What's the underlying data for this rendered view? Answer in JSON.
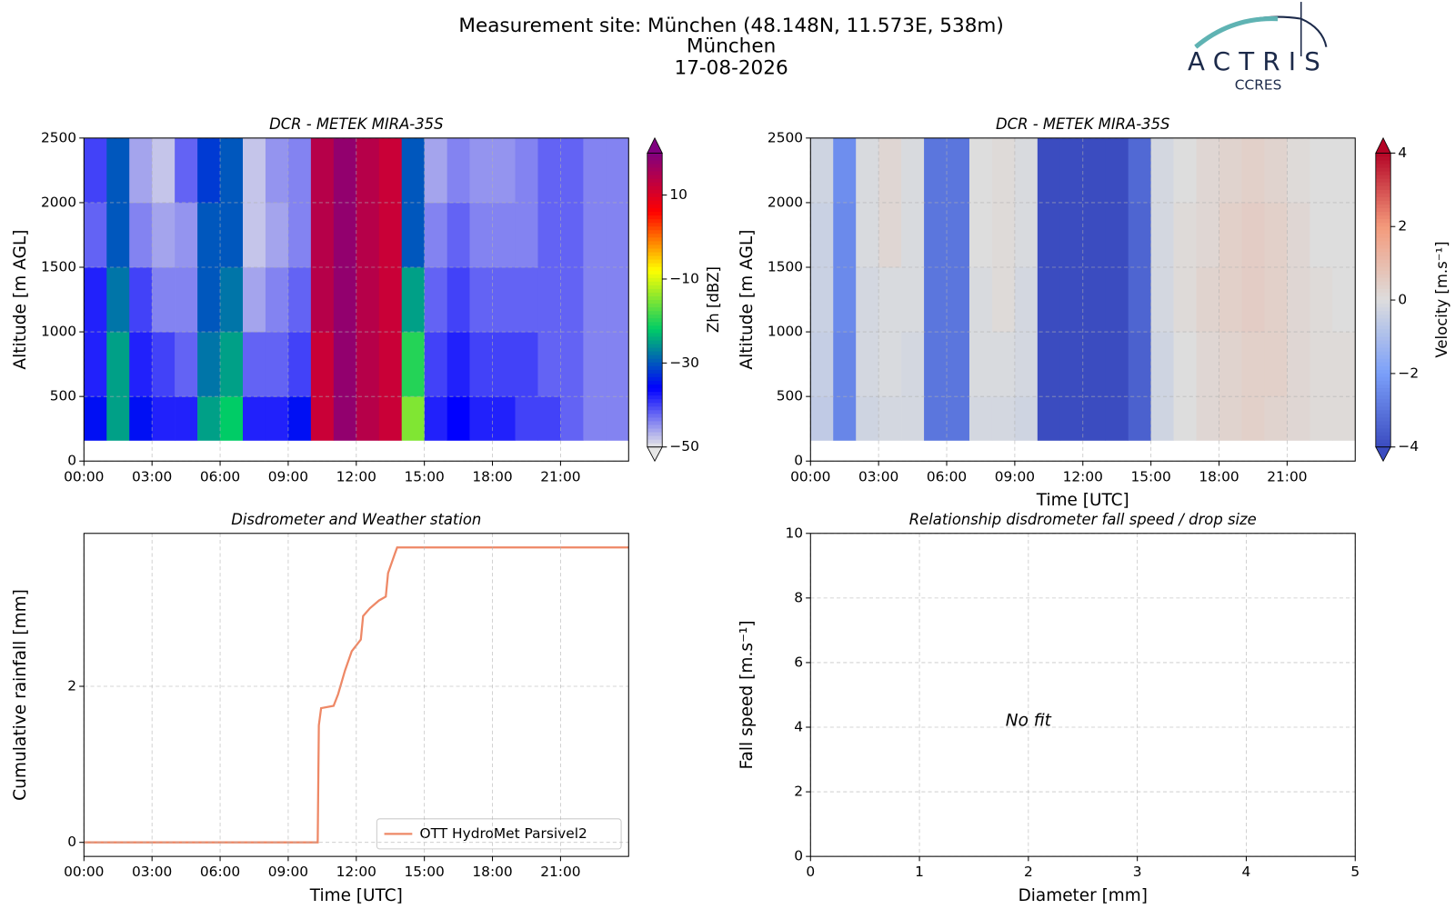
{
  "header": {
    "title": [
      "Measurement site: München (48.148N, 11.573E, 538m)",
      "München",
      "17-08-2026"
    ],
    "logo": "ACTRIS",
    "logo_subtitle": "CCRES"
  },
  "chart_data": [
    {
      "type": "heatmap",
      "title": "DCR - METEK MIRA-35S",
      "ylabel": "Altitude [m AGL]",
      "xlim": [
        0,
        24
      ],
      "xticks": [
        {
          "value": 0,
          "label": "00:00"
        },
        {
          "value": 3,
          "label": "03:00"
        },
        {
          "value": 6,
          "label": "06:00"
        },
        {
          "value": 9,
          "label": "09:00"
        },
        {
          "value": 12,
          "label": "12:00"
        },
        {
          "value": 15,
          "label": "15:00"
        },
        {
          "value": 18,
          "label": "18:00"
        },
        {
          "value": 21,
          "label": "21:00"
        }
      ],
      "ylim": [
        0,
        2500
      ],
      "yticks": [
        0,
        500,
        1000,
        1500,
        2000,
        2500
      ],
      "grid": true,
      "x_bins": [
        0,
        1,
        2,
        3,
        4,
        5,
        6,
        7,
        8,
        9,
        10,
        11,
        12,
        13,
        14,
        15,
        16,
        17,
        18,
        19,
        20,
        21,
        22,
        23,
        24
      ],
      "y_bins": [
        160,
        500,
        1000,
        1500,
        2000,
        2500
      ],
      "z": [
        [
          -35,
          -25,
          -35,
          -38,
          -38,
          -25,
          -22,
          -38,
          -38,
          -35,
          12,
          18,
          14,
          12,
          -15,
          -38,
          -36,
          -38,
          -38,
          -40,
          -40,
          -42,
          -44,
          -44
        ],
        [
          -38,
          -25,
          -38,
          -40,
          -42,
          -28,
          -25,
          -42,
          -42,
          -40,
          12,
          18,
          14,
          12,
          -20,
          -40,
          -38,
          -40,
          -40,
          -40,
          -42,
          -42,
          -44,
          -44
        ],
        [
          -38,
          -28,
          -40,
          -44,
          -44,
          -30,
          -28,
          -46,
          -44,
          -42,
          14,
          18,
          14,
          12,
          -25,
          -42,
          -40,
          -42,
          -42,
          -42,
          -42,
          -42,
          -44,
          -44
        ],
        [
          -42,
          -30,
          -44,
          -46,
          -45,
          -30,
          -30,
          -48,
          -46,
          -44,
          14,
          18,
          14,
          12,
          -30,
          -44,
          -42,
          -44,
          -44,
          -44,
          -42,
          -42,
          -44,
          -44
        ],
        [
          -40,
          -30,
          -46,
          -48,
          -42,
          -32,
          -30,
          -48,
          -45,
          -44,
          14,
          18,
          14,
          12,
          -30,
          -46,
          -44,
          -45,
          -45,
          -44,
          -42,
          -42,
          -44,
          -44
        ]
      ],
      "colorbar_label": "Zh [dBZ]",
      "zlim": [
        -50,
        20
      ],
      "zticks": [
        {
          "value": -50,
          "label": "−50"
        },
        {
          "value": -30,
          "label": "−30"
        },
        {
          "value": -10,
          "label": "−10"
        },
        10
      ],
      "colormap": [
        "#e6e6e6",
        "#0000ff",
        "#00cc66",
        "#ffff00",
        "#ff0000",
        "#800080"
      ]
    },
    {
      "type": "heatmap",
      "title": "DCR - METEK MIRA-35S",
      "xlabel": "Time [UTC]",
      "ylabel": "Altitude [m AGL]",
      "xlim": [
        0,
        24
      ],
      "xticks": [
        {
          "value": 0,
          "label": "00:00"
        },
        {
          "value": 3,
          "label": "03:00"
        },
        {
          "value": 6,
          "label": "06:00"
        },
        {
          "value": 9,
          "label": "09:00"
        },
        {
          "value": 12,
          "label": "12:00"
        },
        {
          "value": 15,
          "label": "15:00"
        },
        {
          "value": 18,
          "label": "18:00"
        },
        {
          "value": 21,
          "label": "21:00"
        }
      ],
      "ylim": [
        0,
        2500
      ],
      "yticks": [
        0,
        500,
        1000,
        1500,
        2000,
        2500
      ],
      "grid": true,
      "x_bins": [
        0,
        1,
        2,
        3,
        4,
        5,
        6,
        7,
        8,
        9,
        10,
        11,
        12,
        13,
        14,
        15,
        16,
        17,
        18,
        19,
        20,
        21,
        22,
        23,
        24
      ],
      "y_bins": [
        160,
        500,
        1000,
        1500,
        2000,
        2500
      ],
      "z": [
        [
          -0.6,
          -2.6,
          -0.3,
          -0.2,
          -0.2,
          -3,
          -3,
          -0.2,
          -0.2,
          -0.3,
          -4,
          -4,
          -4,
          -4,
          -3.5,
          -0.3,
          0,
          0.2,
          0.3,
          0.4,
          0.3,
          0.2,
          0.1,
          0.1
        ],
        [
          -0.5,
          -2.6,
          -0.2,
          -0.1,
          -0.2,
          -3,
          -3,
          -0.1,
          -0.1,
          -0.2,
          -4,
          -4,
          -4,
          -4,
          -3.5,
          -0.3,
          0,
          0.2,
          0.3,
          0.4,
          0.4,
          0.2,
          0.1,
          0.1
        ],
        [
          -0.4,
          -2.5,
          -0.2,
          -0.1,
          -0.1,
          -3,
          -3,
          -0.1,
          0.1,
          -0.2,
          -4,
          -4,
          -4,
          -4,
          -3.4,
          -0.2,
          0.1,
          0.3,
          0.4,
          0.5,
          0.4,
          0.2,
          0.1,
          0
        ],
        [
          -0.4,
          -2.5,
          -0.1,
          0.2,
          -0.1,
          -3,
          -3,
          0,
          0.1,
          -0.1,
          -4,
          -4,
          -4,
          -4,
          -3.4,
          -0.2,
          0.1,
          0.2,
          0.4,
          0.5,
          0.4,
          0.2,
          0,
          0
        ],
        [
          -0.3,
          -2.4,
          -0.1,
          0.2,
          -0.1,
          -3,
          -3,
          0,
          0.1,
          -0.1,
          -4,
          -4,
          -4,
          -4,
          -3.3,
          -0.2,
          0,
          0.2,
          0.3,
          0.4,
          0.3,
          0.1,
          0,
          0
        ]
      ],
      "colorbar_label": "Velocity [m.s⁻¹]",
      "zlim": [
        -4,
        4
      ],
      "zticks": [
        {
          "value": -4,
          "label": "−4"
        },
        {
          "value": -2,
          "label": "−2"
        },
        0,
        2,
        4
      ],
      "colormap": [
        "#3b4cc0",
        "#7b9ff9",
        "#dddddd",
        "#f49a7b",
        "#b40426"
      ]
    },
    {
      "type": "line",
      "title": "Disdrometer and Weather station",
      "xlabel": "Time [UTC]",
      "ylabel": "Cumulative rainfall [mm]",
      "xlim": [
        0,
        24
      ],
      "xticks": [
        {
          "value": 0,
          "label": "00:00"
        },
        {
          "value": 3,
          "label": "03:00"
        },
        {
          "value": 6,
          "label": "06:00"
        },
        {
          "value": 9,
          "label": "09:00"
        },
        {
          "value": 12,
          "label": "12:00"
        },
        {
          "value": 15,
          "label": "15:00"
        },
        {
          "value": 18,
          "label": "18:00"
        },
        {
          "value": 21,
          "label": "21:00"
        }
      ],
      "ylim": [
        -0.18,
        3.96
      ],
      "yticks": [
        0,
        2
      ],
      "grid": true,
      "legend": "lower right",
      "x": [
        0,
        10.3,
        10.35,
        10.45,
        11,
        11.2,
        11.5,
        11.8,
        12.2,
        12.3,
        12.6,
        13,
        13.3,
        13.4,
        13.7,
        13.8,
        24
      ],
      "series": [
        {
          "name": "OTT HydroMet Parsivel2",
          "color": "#ee8866",
          "values": [
            0,
            0,
            1.5,
            1.72,
            1.75,
            1.9,
            2.2,
            2.45,
            2.6,
            2.9,
            3.0,
            3.1,
            3.15,
            3.45,
            3.7,
            3.78,
            3.78
          ]
        }
      ]
    },
    {
      "type": "scatter",
      "title": "Relationship disdrometer fall speed / drop size",
      "xlabel": "Diameter [mm]",
      "ylabel": "Fall speed [m.s⁻¹]",
      "xlim": [
        0,
        5
      ],
      "xticks": [
        0,
        1,
        2,
        3,
        4,
        5
      ],
      "ylim": [
        0,
        10
      ],
      "yticks": [
        0,
        2,
        4,
        6,
        8,
        10
      ],
      "grid": true,
      "annotation": "No fit"
    }
  ]
}
